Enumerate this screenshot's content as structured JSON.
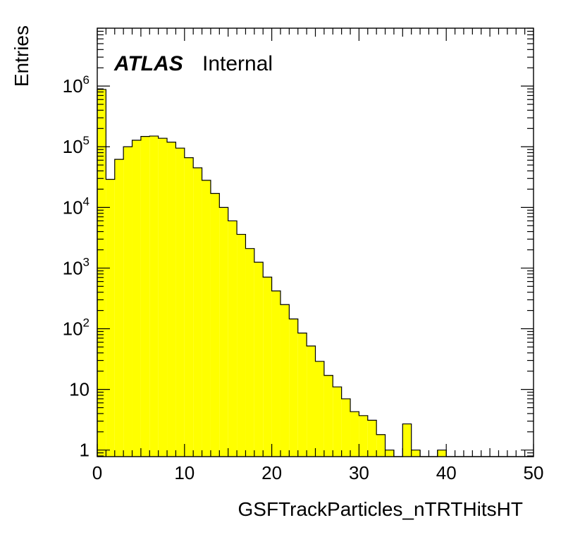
{
  "chart_data": {
    "type": "histogram",
    "title": "",
    "xlabel": "GSFTrackParticles_nTRTHitsHT",
    "ylabel": "Entries",
    "label_bold": "ATLAS",
    "label_normal": "Internal",
    "fill_color": "#ffff00",
    "line_color": "#000000",
    "log_y": true,
    "xlim": [
      0,
      50
    ],
    "ylim": [
      0.78,
      9000000
    ],
    "x_ticks": [
      0,
      10,
      20,
      30,
      40,
      50
    ],
    "x_tick_labels": [
      "0",
      "10",
      "20",
      "30",
      "40",
      "50"
    ],
    "y_ticks": [
      1,
      10,
      100,
      1000,
      10000,
      100000,
      1000000
    ],
    "y_tick_labels": [
      {
        "base": "1",
        "exp": ""
      },
      {
        "base": "10",
        "exp": ""
      },
      {
        "base": "10",
        "exp": "2"
      },
      {
        "base": "10",
        "exp": "3"
      },
      {
        "base": "10",
        "exp": "4"
      },
      {
        "base": "10",
        "exp": "5"
      },
      {
        "base": "10",
        "exp": "6"
      }
    ],
    "bin_width": 1,
    "bin_edges_start": 0,
    "values": [
      880000,
      29000,
      62000,
      100000,
      128000,
      148000,
      150000,
      138000,
      119000,
      95000,
      66000,
      45000,
      28000,
      17000,
      10000,
      6000,
      3600,
      2100,
      1250,
      710,
      420,
      250,
      145,
      85,
      52,
      29,
      17,
      11,
      7,
      4.3,
      3.7,
      3.1,
      1.8,
      1,
      0,
      2.7,
      1,
      0,
      0,
      1,
      0,
      0,
      0,
      0,
      0,
      0,
      0,
      0,
      0,
      0
    ]
  }
}
